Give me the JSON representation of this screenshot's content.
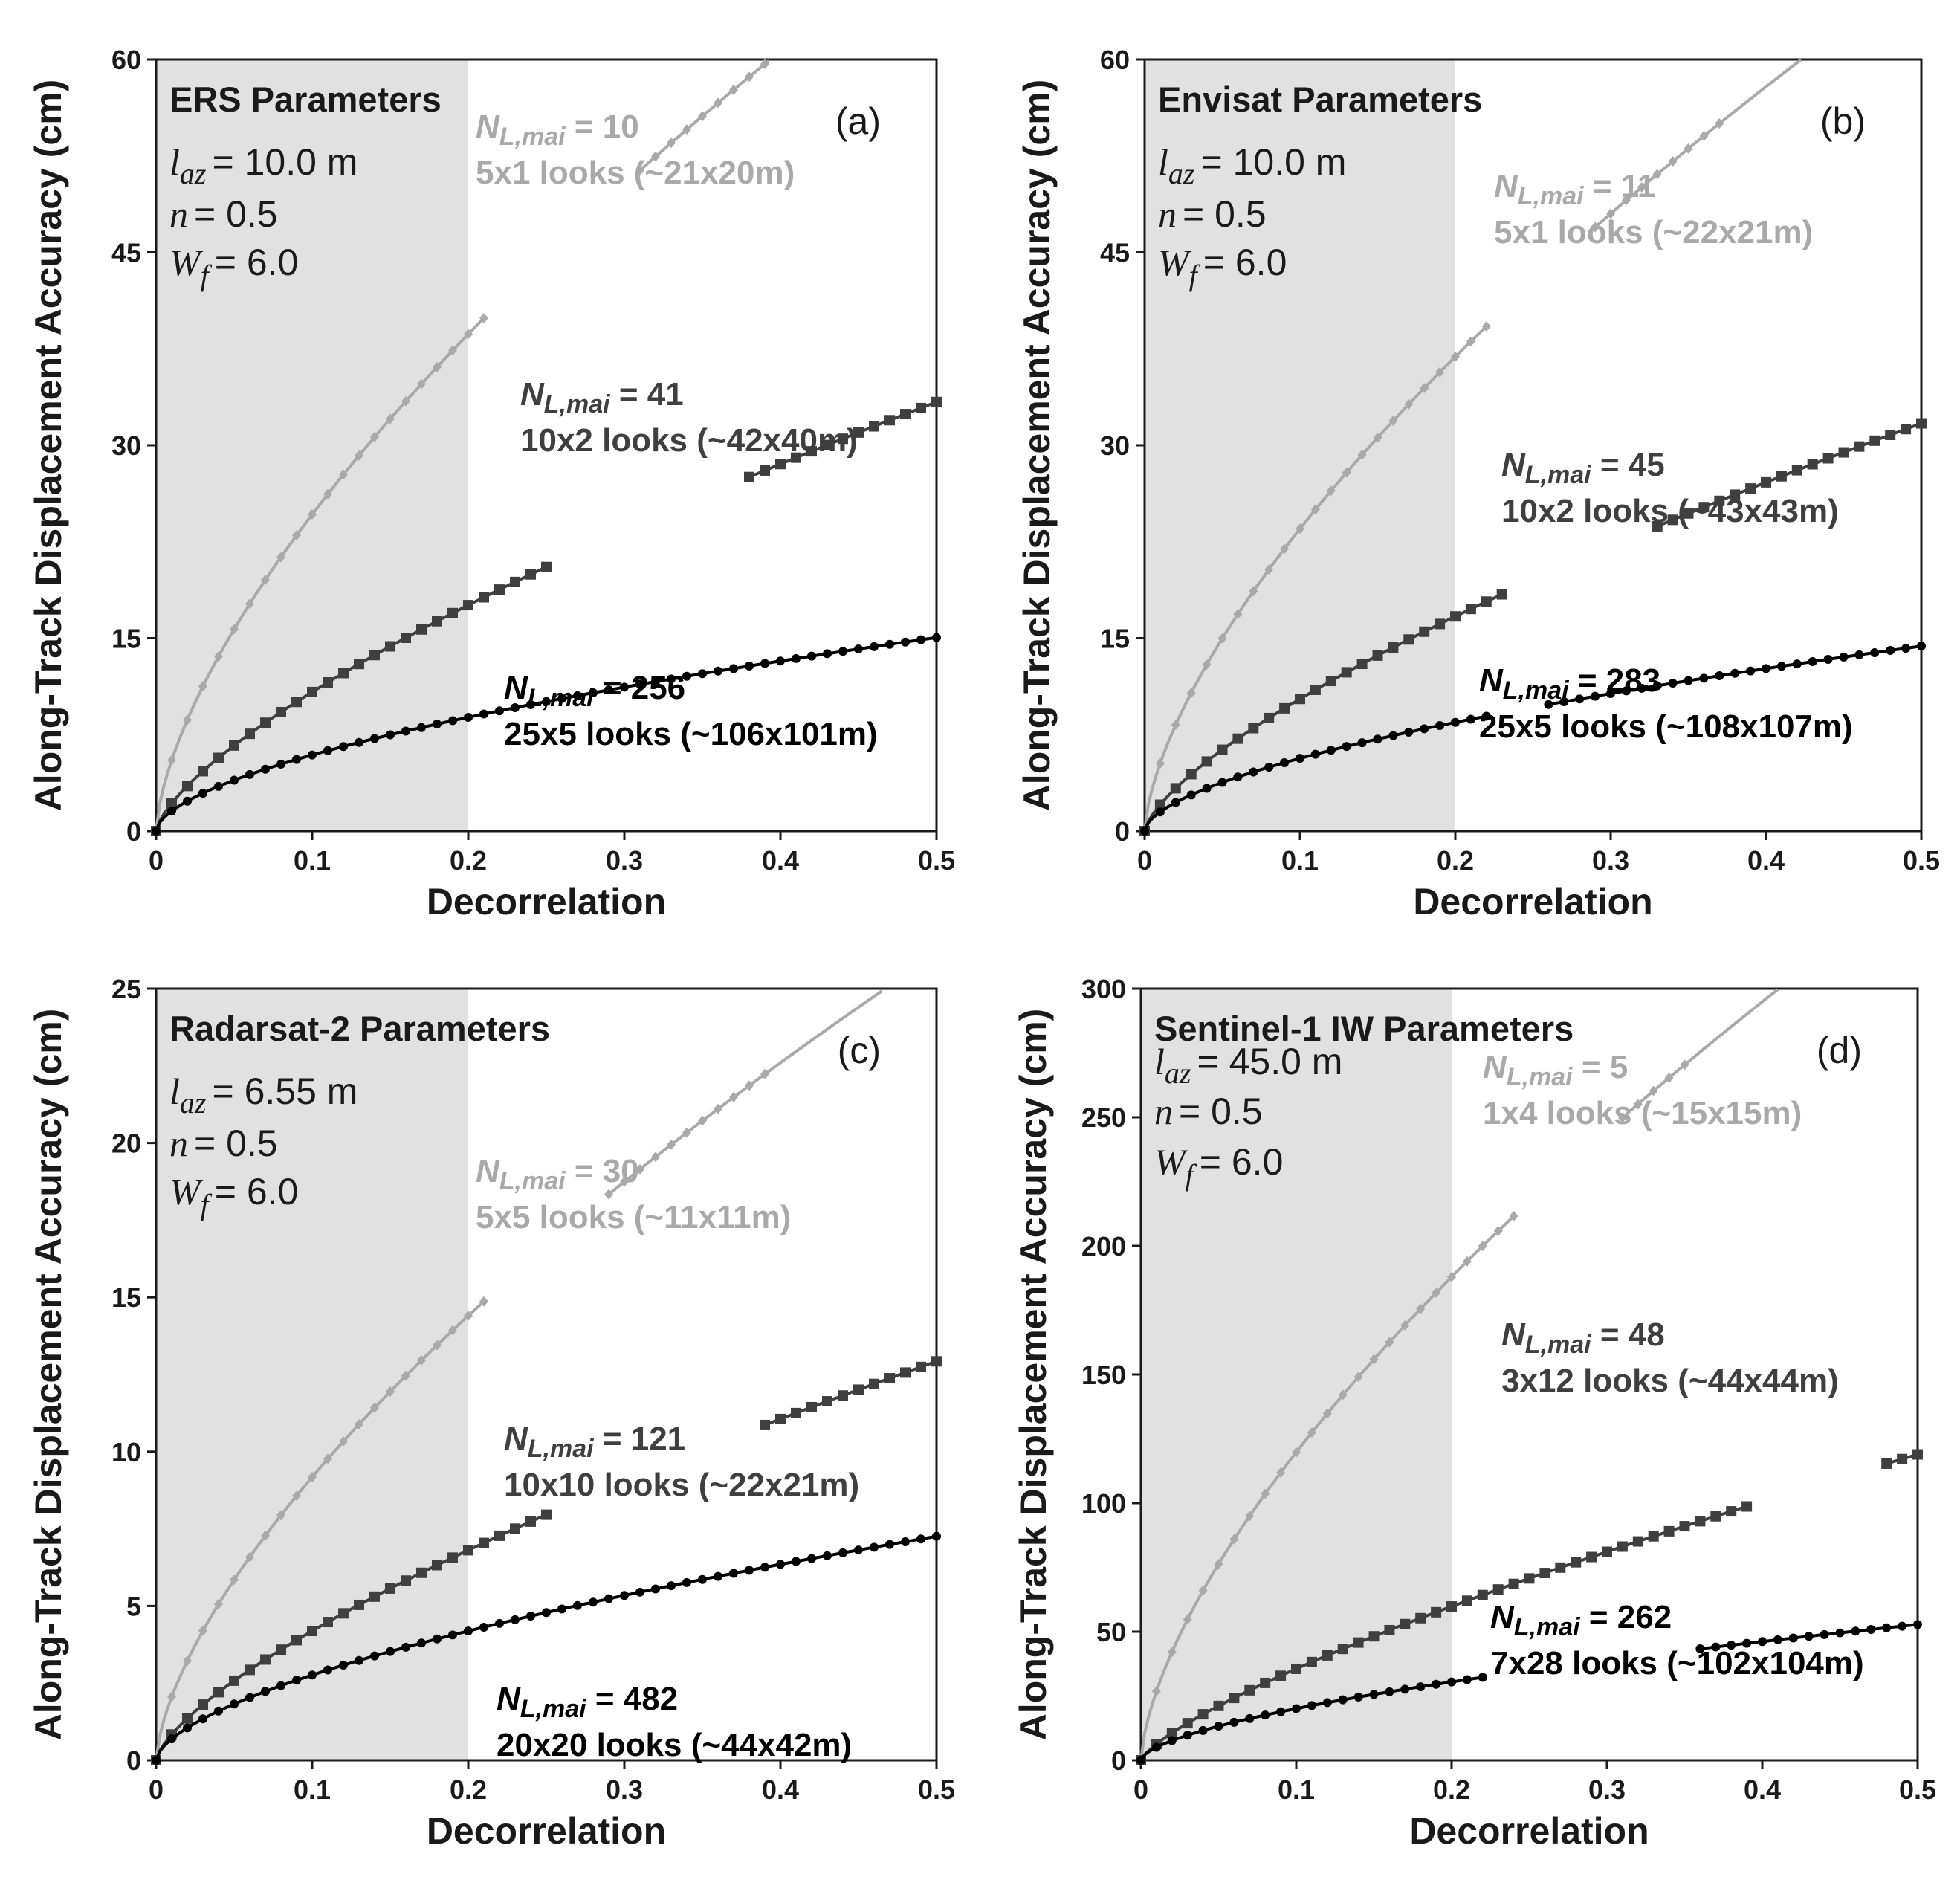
{
  "figure": {
    "colors": {
      "light": "#a9a9a9",
      "medium": "#3f3f3f",
      "dark": "#000000",
      "shade": "#e1e1e1",
      "text": "#1a1a1a"
    }
  },
  "chart_data": [
    {
      "type": "line",
      "panel": "(a)",
      "title": "ERS Parameters",
      "params": {
        "laz_symbol": "l",
        "laz_sub": "az",
        "laz_value": "= 10.0 m",
        "n_symbol": "n",
        "n_value": "= 0.5",
        "wf_symbol": "W",
        "wf_sub": "f",
        "wf_value": "= 6.0"
      },
      "xlabel": "Decorrelation",
      "ylabel": "Along-Track Displacement Accuracy (cm)",
      "xlim": [
        0,
        0.5
      ],
      "ylim": [
        0,
        60
      ],
      "xticks": [
        "0",
        "0.1",
        "0.2",
        "0.3",
        "0.4",
        "0.5"
      ],
      "yticks": [
        "0",
        "15",
        "30",
        "45",
        "60"
      ],
      "shaded_x": [
        0,
        0.2
      ],
      "series": [
        {
          "name": "light",
          "color": "light",
          "marker": "diamond",
          "label_main": "N",
          "label_sub": "L,mai",
          "label_value": " = 10",
          "label_looks": "5x1 looks (~21x20m)",
          "k": 110,
          "p": 0.65,
          "end_x": 0.5,
          "x": [
            0,
            0.01,
            0.02,
            0.03,
            0.04,
            0.05,
            0.06,
            0.07,
            0.08,
            0.09,
            0.1,
            0.11,
            0.12,
            0.13,
            0.14,
            0.15,
            0.16,
            0.17,
            0.18,
            0.19,
            0.2,
            0.21,
            0.22,
            0.23,
            0.24,
            0.25,
            0.26,
            0.27,
            0.28,
            0.29,
            0.3,
            0.31,
            0.32,
            0.33,
            0.34,
            0.35,
            0.36,
            0.37,
            0.38,
            0.39
          ],
          "gaps": [
            [
              0.21,
              0.31
            ]
          ]
        },
        {
          "name": "medium",
          "color": "medium",
          "marker": "square",
          "label_main": "N",
          "label_sub": "L,mai",
          "label_value": " = 41",
          "label_looks": "10x2 looks (~42x40m)",
          "k": 54.2,
          "p": 0.7,
          "end_x": 0.5,
          "x": [
            0,
            0.01,
            0.02,
            0.03,
            0.04,
            0.05,
            0.06,
            0.07,
            0.08,
            0.09,
            0.1,
            0.11,
            0.12,
            0.13,
            0.14,
            0.15,
            0.16,
            0.17,
            0.18,
            0.19,
            0.2,
            0.21,
            0.22,
            0.23,
            0.24,
            0.25,
            0.26,
            0.27,
            0.28,
            0.29,
            0.3,
            0.31,
            0.32,
            0.33,
            0.34,
            0.35,
            0.36,
            0.37,
            0.38,
            0.39,
            0.4,
            0.41,
            0.42,
            0.43,
            0.44,
            0.45,
            0.46,
            0.47,
            0.48,
            0.49,
            0.5
          ],
          "gaps": [
            [
              0.25,
              0.38
            ]
          ]
        },
        {
          "name": "dark",
          "color": "dark",
          "marker": "circle",
          "label_main": "N",
          "label_sub": "L,mai",
          "label_value": " = 256",
          "label_looks": "25x5 looks (~106x101m)",
          "k": 22.5,
          "p": 0.58,
          "end_x": 0.5,
          "x": [
            0,
            0.01,
            0.02,
            0.03,
            0.04,
            0.05,
            0.06,
            0.07,
            0.08,
            0.09,
            0.1,
            0.11,
            0.12,
            0.13,
            0.14,
            0.15,
            0.16,
            0.17,
            0.18,
            0.19,
            0.2,
            0.21,
            0.22,
            0.23,
            0.24,
            0.25,
            0.26,
            0.27,
            0.28,
            0.29,
            0.3,
            0.31,
            0.32,
            0.33,
            0.34,
            0.35,
            0.36,
            0.37,
            0.38,
            0.39,
            0.4,
            0.41,
            0.42,
            0.43,
            0.44,
            0.45,
            0.46,
            0.47,
            0.48,
            0.49,
            0.5
          ],
          "gaps": []
        }
      ]
    },
    {
      "type": "line",
      "panel": "(b)",
      "title": "Envisat Parameters",
      "params": {
        "laz_symbol": "l",
        "laz_sub": "az",
        "laz_value": "= 10.0 m",
        "n_symbol": "n",
        "n_value": "= 0.5",
        "wf_symbol": "W",
        "wf_sub": "f",
        "wf_value": "= 6.0"
      },
      "xlabel": "Decorrelation",
      "ylabel": "Along-Track Displacement Accuracy (cm)",
      "xlim": [
        0,
        0.5
      ],
      "ylim": [
        0,
        60
      ],
      "xticks": [
        "0",
        "0.1",
        "0.2",
        "0.3",
        "0.4",
        "0.5"
      ],
      "yticks": [
        "0",
        "15",
        "30",
        "45",
        "60"
      ],
      "shaded_x": [
        0,
        0.2
      ],
      "series": [
        {
          "name": "light",
          "color": "light",
          "marker": "diamond",
          "label_main": "N",
          "label_sub": "L,mai",
          "label_value": " = 11",
          "label_looks": "5x1 looks (~22x21m)",
          "k": 105,
          "p": 0.65,
          "end_x": 0.5,
          "x": [
            0,
            0.01,
            0.02,
            0.03,
            0.04,
            0.05,
            0.06,
            0.07,
            0.08,
            0.09,
            0.1,
            0.11,
            0.12,
            0.13,
            0.14,
            0.15,
            0.16,
            0.17,
            0.18,
            0.19,
            0.2,
            0.21,
            0.22,
            0.23,
            0.24,
            0.25,
            0.26,
            0.27,
            0.28,
            0.29,
            0.3,
            0.31,
            0.32,
            0.33,
            0.34,
            0.35,
            0.36,
            0.37
          ],
          "gaps": [
            [
              0.22,
              0.29
            ]
          ]
        },
        {
          "name": "medium",
          "color": "medium",
          "marker": "square",
          "label_main": "N",
          "label_sub": "L,mai",
          "label_value": " = 45",
          "label_looks": "10x2 looks (~43x43m)",
          "k": 51.5,
          "p": 0.7,
          "end_x": 0.5,
          "x": [
            0,
            0.01,
            0.02,
            0.03,
            0.04,
            0.05,
            0.06,
            0.07,
            0.08,
            0.09,
            0.1,
            0.11,
            0.12,
            0.13,
            0.14,
            0.15,
            0.16,
            0.17,
            0.18,
            0.19,
            0.2,
            0.21,
            0.22,
            0.23,
            0.24,
            0.25,
            0.26,
            0.27,
            0.28,
            0.29,
            0.3,
            0.31,
            0.32,
            0.33,
            0.34,
            0.35,
            0.36,
            0.37,
            0.38,
            0.39,
            0.4,
            0.41,
            0.42,
            0.43,
            0.44,
            0.45,
            0.46,
            0.47,
            0.48,
            0.49,
            0.5
          ],
          "gaps": [
            [
              0.23,
              0.33
            ]
          ]
        },
        {
          "name": "dark",
          "color": "dark",
          "marker": "circle",
          "label_main": "N",
          "label_sub": "L,mai",
          "label_value": " = 283",
          "label_looks": "25x5 looks (~108x107m)",
          "k": 21.5,
          "p": 0.58,
          "end_x": 0.5,
          "x": [
            0,
            0.01,
            0.02,
            0.03,
            0.04,
            0.05,
            0.06,
            0.07,
            0.08,
            0.09,
            0.1,
            0.11,
            0.12,
            0.13,
            0.14,
            0.15,
            0.16,
            0.17,
            0.18,
            0.19,
            0.2,
            0.21,
            0.22,
            0.23,
            0.24,
            0.25,
            0.26,
            0.27,
            0.28,
            0.29,
            0.3,
            0.31,
            0.32,
            0.33,
            0.34,
            0.35,
            0.36,
            0.37,
            0.38,
            0.39,
            0.4,
            0.41,
            0.42,
            0.43,
            0.44,
            0.45,
            0.46,
            0.47,
            0.48,
            0.49,
            0.5
          ],
          "gaps": [
            [
              0.22,
              0.26
            ]
          ]
        }
      ]
    },
    {
      "type": "line",
      "panel": "(c)",
      "title": "Radarsat-2 Parameters",
      "params": {
        "laz_symbol": "l",
        "laz_sub": "az",
        "laz_value": "= 6.55 m",
        "n_symbol": "n",
        "n_value": "= 0.5",
        "wf_symbol": "W",
        "wf_sub": "f",
        "wf_value": "= 6.0"
      },
      "xlabel": "Decorrelation",
      "ylabel": "Along-Track Displacement Accuracy (cm)",
      "xlim": [
        0,
        0.5
      ],
      "ylim": [
        0,
        25
      ],
      "xticks": [
        "0",
        "0.1",
        "0.2",
        "0.3",
        "0.4",
        "0.5"
      ],
      "yticks": [
        "0",
        "5",
        "10",
        "15",
        "20",
        "25"
      ],
      "shaded_x": [
        0,
        0.2
      ],
      "series": [
        {
          "name": "light",
          "color": "light",
          "marker": "diamond",
          "label_main": "N",
          "label_sub": "L,mai",
          "label_value": " = 30",
          "label_looks": "5x5 looks (~11x11m)",
          "k": 41,
          "p": 0.65,
          "end_x": 0.5,
          "x": [
            0,
            0.01,
            0.02,
            0.03,
            0.04,
            0.05,
            0.06,
            0.07,
            0.08,
            0.09,
            0.1,
            0.11,
            0.12,
            0.13,
            0.14,
            0.15,
            0.16,
            0.17,
            0.18,
            0.19,
            0.2,
            0.21,
            0.22,
            0.23,
            0.24,
            0.25,
            0.26,
            0.27,
            0.28,
            0.29,
            0.3,
            0.31,
            0.32,
            0.33,
            0.34,
            0.35,
            0.36,
            0.37,
            0.38,
            0.39
          ],
          "gaps": [
            [
              0.21,
              0.29
            ]
          ]
        },
        {
          "name": "medium",
          "color": "medium",
          "marker": "square",
          "label_main": "N",
          "label_sub": "L,mai",
          "label_value": " = 121",
          "label_looks": "10x10 looks (~22x21m)",
          "k": 21,
          "p": 0.7,
          "end_x": 0.5,
          "x": [
            0,
            0.01,
            0.02,
            0.03,
            0.04,
            0.05,
            0.06,
            0.07,
            0.08,
            0.09,
            0.1,
            0.11,
            0.12,
            0.13,
            0.14,
            0.15,
            0.16,
            0.17,
            0.18,
            0.19,
            0.2,
            0.21,
            0.22,
            0.23,
            0.24,
            0.25,
            0.26,
            0.27,
            0.28,
            0.29,
            0.3,
            0.31,
            0.32,
            0.33,
            0.34,
            0.35,
            0.36,
            0.37,
            0.38,
            0.39,
            0.4,
            0.41,
            0.42,
            0.43,
            0.44,
            0.45,
            0.46,
            0.47,
            0.48,
            0.49,
            0.5
          ],
          "gaps": [
            [
              0.25,
              0.39
            ]
          ]
        },
        {
          "name": "dark",
          "color": "dark",
          "marker": "circle",
          "label_main": "N",
          "label_sub": "L,mai",
          "label_value": " = 482",
          "label_looks": "20x20 looks (~44x42m)",
          "k": 11,
          "p": 0.6,
          "end_x": 0.5,
          "x": [
            0,
            0.01,
            0.02,
            0.03,
            0.04,
            0.05,
            0.06,
            0.07,
            0.08,
            0.09,
            0.1,
            0.11,
            0.12,
            0.13,
            0.14,
            0.15,
            0.16,
            0.17,
            0.18,
            0.19,
            0.2,
            0.21,
            0.22,
            0.23,
            0.24,
            0.25,
            0.26,
            0.27,
            0.28,
            0.29,
            0.3,
            0.31,
            0.32,
            0.33,
            0.34,
            0.35,
            0.36,
            0.37,
            0.38,
            0.39,
            0.4,
            0.41,
            0.42,
            0.43,
            0.44,
            0.45,
            0.46,
            0.47,
            0.48,
            0.49,
            0.5
          ],
          "gaps": []
        }
      ]
    },
    {
      "type": "line",
      "panel": "(d)",
      "title": "Sentinel-1 IW Parameters",
      "params": {
        "laz_symbol": "l",
        "laz_sub": "az",
        "laz_value": "= 45.0 m",
        "n_symbol": "n",
        "n_value": "= 0.5",
        "wf_symbol": "W",
        "wf_sub": "f",
        "wf_value": "= 6.0"
      },
      "xlabel": "Decorrelation",
      "ylabel": "Along-Track Displacement Accuracy (cm)",
      "xlim": [
        0,
        0.5
      ],
      "ylim": [
        0,
        300
      ],
      "xticks": [
        "0",
        "0.1",
        "0.2",
        "0.3",
        "0.4",
        "0.5"
      ],
      "yticks": [
        "0",
        "50",
        "100",
        "150",
        "200",
        "250",
        "300"
      ],
      "shaded_x": [
        0,
        0.2
      ],
      "series": [
        {
          "name": "light",
          "color": "light",
          "marker": "diamond",
          "label_main": "N",
          "label_sub": "L,mai",
          "label_value": " = 5",
          "label_looks": "1x4 looks (~15x15m)",
          "k": 535,
          "p": 0.65,
          "end_x": 0.5,
          "x": [
            0,
            0.01,
            0.02,
            0.03,
            0.04,
            0.05,
            0.06,
            0.07,
            0.08,
            0.09,
            0.1,
            0.11,
            0.12,
            0.13,
            0.14,
            0.15,
            0.16,
            0.17,
            0.18,
            0.19,
            0.2,
            0.21,
            0.22,
            0.23,
            0.24,
            0.25,
            0.26,
            0.27,
            0.28,
            0.29,
            0.3,
            0.31,
            0.32,
            0.33,
            0.34,
            0.35
          ],
          "gaps": [
            [
              0.24,
              0.31
            ]
          ]
        },
        {
          "name": "medium",
          "color": "medium",
          "marker": "square",
          "label_main": "N",
          "label_sub": "L,mai",
          "label_value": " = 48",
          "label_looks": "3x12 looks (~44x44m)",
          "k": 200,
          "p": 0.75,
          "end_x": 0.5,
          "x": [
            0,
            0.01,
            0.02,
            0.03,
            0.04,
            0.05,
            0.06,
            0.07,
            0.08,
            0.09,
            0.1,
            0.11,
            0.12,
            0.13,
            0.14,
            0.15,
            0.16,
            0.17,
            0.18,
            0.19,
            0.2,
            0.21,
            0.22,
            0.23,
            0.24,
            0.25,
            0.26,
            0.27,
            0.28,
            0.29,
            0.3,
            0.31,
            0.32,
            0.33,
            0.34,
            0.35,
            0.36,
            0.37,
            0.38,
            0.39,
            0.4,
            0.41,
            0.42,
            0.43,
            0.44,
            0.45,
            0.46,
            0.47,
            0.48,
            0.49,
            0.5
          ],
          "gaps": [
            [
              0.39,
              0.48
            ]
          ]
        },
        {
          "name": "dark",
          "color": "dark",
          "marker": "circle",
          "label_main": "N",
          "label_sub": "L,mai",
          "label_value": " = 262",
          "label_looks": "7x28 looks (~102x104m)",
          "k": 80,
          "p": 0.6,
          "end_x": 0.5,
          "x": [
            0,
            0.01,
            0.02,
            0.03,
            0.04,
            0.05,
            0.06,
            0.07,
            0.08,
            0.09,
            0.1,
            0.11,
            0.12,
            0.13,
            0.14,
            0.15,
            0.16,
            0.17,
            0.18,
            0.19,
            0.2,
            0.21,
            0.22,
            0.23,
            0.24,
            0.25,
            0.26,
            0.27,
            0.28,
            0.29,
            0.3,
            0.31,
            0.32,
            0.33,
            0.34,
            0.35,
            0.36,
            0.37,
            0.38,
            0.39,
            0.4,
            0.41,
            0.42,
            0.43,
            0.44,
            0.45,
            0.46,
            0.47,
            0.48,
            0.49,
            0.5
          ],
          "gaps": [
            [
              0.22,
              0.36
            ]
          ]
        }
      ]
    }
  ]
}
